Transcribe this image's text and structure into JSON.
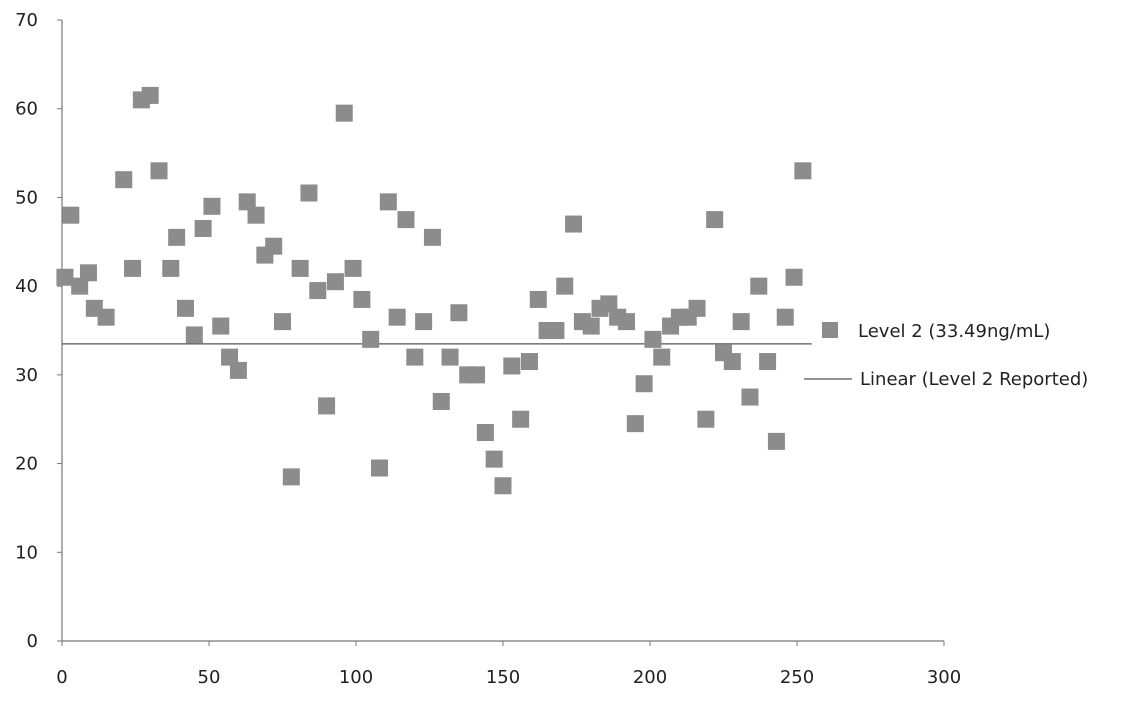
{
  "chart_data": {
    "type": "scatter",
    "title": "",
    "xlabel": "",
    "ylabel": "",
    "xlim": [
      0,
      300
    ],
    "ylim": [
      0,
      70
    ],
    "xticks": [
      "0",
      "50",
      "100",
      "150",
      "200",
      "250",
      "300"
    ],
    "yticks": [
      "0",
      "10",
      "20",
      "30",
      "40",
      "50",
      "60",
      "70"
    ],
    "grid": false,
    "legend_position": "right",
    "colors": {
      "marker": "#8c8c8c",
      "line": "#555555",
      "axis": "#777777"
    },
    "series": [
      {
        "name": "Level 2 (33.49ng/mL)",
        "type": "scatter",
        "marker": "square",
        "x": [
          1,
          3,
          6,
          9,
          11,
          15,
          21,
          24,
          27,
          30,
          33,
          37,
          39,
          42,
          45,
          48,
          51,
          54,
          57,
          60,
          63,
          66,
          69,
          72,
          75,
          78,
          81,
          84,
          87,
          90,
          93,
          96,
          99,
          102,
          105,
          108,
          111,
          114,
          117,
          120,
          123,
          126,
          129,
          132,
          135,
          138,
          141,
          144,
          147,
          150,
          153,
          156,
          159,
          162,
          165,
          168,
          171,
          174,
          177,
          180,
          183,
          186,
          189,
          192,
          195,
          198,
          201,
          204,
          207,
          210,
          213,
          216,
          219,
          222,
          225,
          228,
          231,
          234,
          237,
          240,
          243,
          246,
          249,
          252
        ],
        "y": [
          41,
          48,
          40,
          41.5,
          37.5,
          36.5,
          52,
          42,
          61,
          61.5,
          53,
          42,
          45.5,
          37.5,
          34.5,
          46.5,
          49,
          35.5,
          32,
          30.5,
          49.5,
          48,
          43.5,
          44.5,
          36,
          18.5,
          42,
          50.5,
          39.5,
          26.5,
          40.5,
          59.5,
          42,
          38.5,
          34,
          19.5,
          49.5,
          36.5,
          47.5,
          32,
          36,
          45.5,
          27,
          32,
          37,
          30,
          30,
          23.5,
          20.5,
          17.5,
          31,
          25,
          31.5,
          38.5,
          35,
          35,
          40,
          47,
          36,
          35.5,
          37.5,
          38,
          36.5,
          36,
          24.5,
          29,
          34,
          32,
          35.5,
          36.5,
          36.5,
          37.5,
          25,
          47.5,
          32.5,
          31.5,
          36,
          27.5,
          40,
          31.5,
          22.5,
          36.5,
          41,
          53
        ]
      },
      {
        "name": "Linear (Level 2 Reported)",
        "type": "line",
        "x": [
          0,
          255
        ],
        "y": [
          33.49,
          33.49
        ]
      }
    ]
  }
}
